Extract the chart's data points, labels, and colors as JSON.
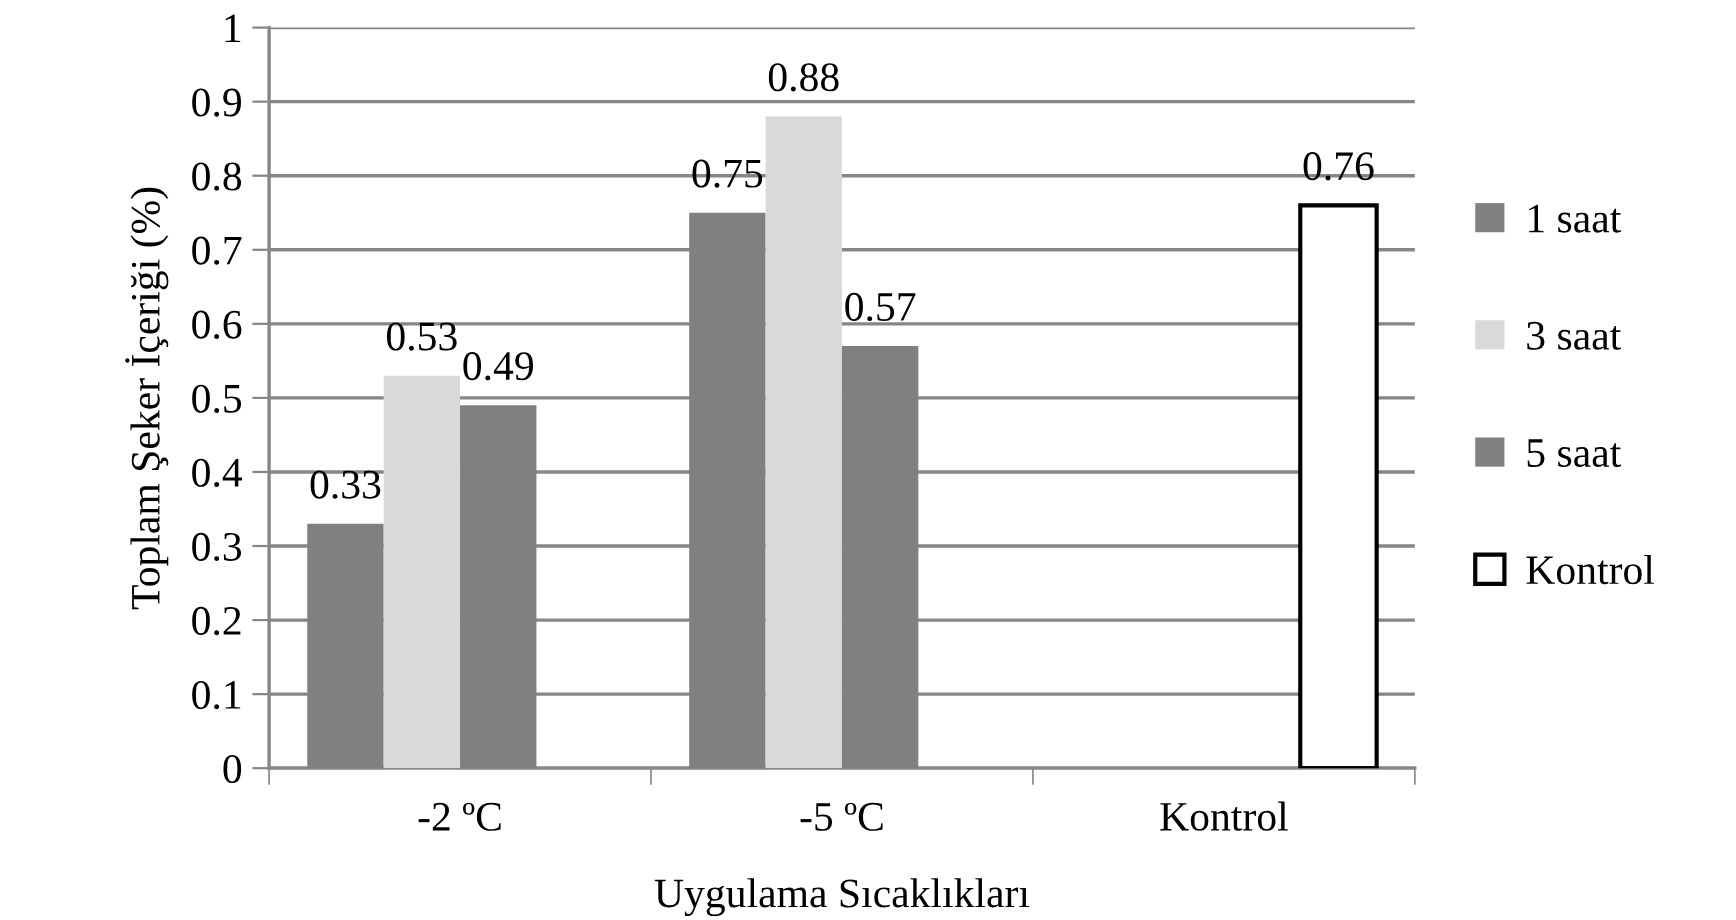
{
  "chart_data": {
    "type": "bar",
    "xlabel": "Uygulama Sıcaklıkları",
    "ylabel": "Toplam Şeker İçeriği (%)",
    "categories": [
      "-2 ºC",
      "-5 ºC",
      "Kontrol"
    ],
    "series": [
      {
        "name": "1 saat",
        "color": "#808080",
        "values": [
          0.33,
          0.75,
          null
        ]
      },
      {
        "name": "3 saat",
        "color": "#d9d9d9",
        "values": [
          0.53,
          0.88,
          null
        ]
      },
      {
        "name": "5 saat",
        "color": "#808080",
        "values": [
          0.49,
          0.57,
          null
        ]
      },
      {
        "name": "Kontrol",
        "color": "#ffffff",
        "values": [
          null,
          null,
          0.76
        ]
      }
    ],
    "ylim": [
      0,
      1
    ],
    "yticks": [
      0,
      0.1,
      0.2,
      0.3,
      0.4,
      0.5,
      0.6,
      0.7,
      0.8,
      0.9,
      1
    ],
    "grid": "y",
    "legend": "right",
    "data_labels": true
  }
}
